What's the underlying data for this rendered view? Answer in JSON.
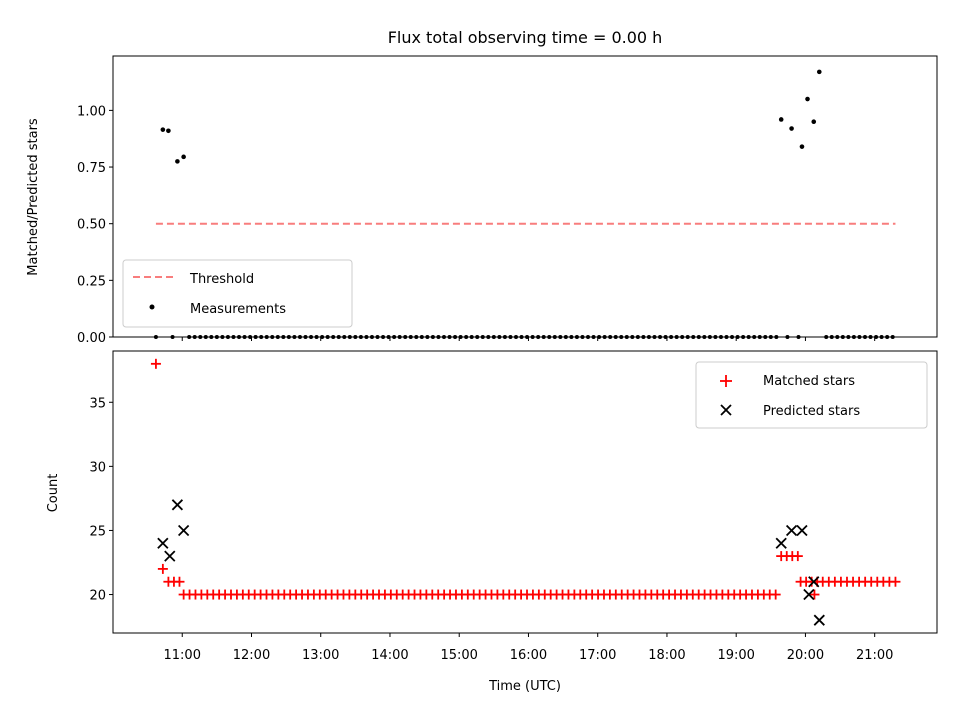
{
  "chart_data": [
    {
      "type": "scatter",
      "title": "Flux total observing time = 0.00 h",
      "xlabel": "",
      "ylabel": "Matched/Predicted stars",
      "xlim": [
        10.0,
        21.9
      ],
      "ylim": [
        0.0,
        1.24
      ],
      "yticks": [
        0.0,
        0.25,
        0.5,
        0.75,
        1.0
      ],
      "ytick_labels": [
        "0.00",
        "0.25",
        "0.50",
        "0.75",
        "1.00"
      ],
      "grid": false,
      "legend_position": "lower-left",
      "threshold": {
        "name": "Threshold",
        "value": 0.5,
        "x_start": 10.62,
        "x_end": 21.3,
        "color": "#f87d7d"
      },
      "series": [
        {
          "name": "Measurements",
          "color": "#000000",
          "points": [
            [
              10.72,
              0.915
            ],
            [
              10.8,
              0.91
            ],
            [
              10.93,
              0.775
            ],
            [
              11.02,
              0.795
            ],
            [
              19.65,
              0.96
            ],
            [
              19.8,
              0.92
            ],
            [
              19.95,
              0.84
            ],
            [
              20.03,
              1.05
            ],
            [
              20.12,
              0.95
            ],
            [
              20.2,
              1.17
            ]
          ],
          "zero_range": {
            "value": 0.0,
            "x_start": 10.62,
            "x_end": 21.3,
            "step": 0.08
          }
        }
      ]
    },
    {
      "type": "scatter",
      "title": "",
      "xlabel": "Time (UTC)",
      "ylabel": "Count",
      "xlim": [
        10.0,
        21.9
      ],
      "ylim": [
        17.0,
        39.0
      ],
      "yticks": [
        20,
        25,
        30,
        35
      ],
      "ytick_labels": [
        "20",
        "25",
        "30",
        "35"
      ],
      "xticks": [
        11,
        12,
        13,
        14,
        15,
        16,
        17,
        18,
        19,
        20,
        21
      ],
      "xtick_labels": [
        "11:00",
        "12:00",
        "13:00",
        "14:00",
        "15:00",
        "16:00",
        "17:00",
        "18:00",
        "19:00",
        "20:00",
        "21:00"
      ],
      "grid": false,
      "legend_position": "top-right",
      "series": [
        {
          "name": "Matched stars",
          "marker": "+",
          "color": "#ff0000",
          "points": [
            [
              10.62,
              38
            ],
            [
              10.72,
              22
            ],
            [
              10.8,
              21
            ],
            [
              10.88,
              21
            ],
            [
              10.96,
              21
            ],
            [
              19.65,
              23
            ],
            [
              19.73,
              23
            ],
            [
              19.81,
              23
            ],
            [
              19.89,
              23
            ],
            [
              19.93,
              21
            ],
            [
              20.01,
              21
            ],
            [
              20.09,
              21
            ],
            [
              20.17,
              21
            ],
            [
              20.13,
              20
            ]
          ],
          "runs": [
            {
              "value": 20,
              "x_start": 11.02,
              "x_end": 19.57,
              "step": 0.0855
            },
            {
              "value": 21,
              "x_start": 20.25,
              "x_end": 21.3,
              "step": 0.0875
            }
          ]
        },
        {
          "name": "Predicted stars",
          "marker": "x",
          "color": "#000000",
          "points": [
            [
              10.72,
              24
            ],
            [
              10.82,
              23
            ],
            [
              10.93,
              27
            ],
            [
              11.02,
              25
            ],
            [
              19.65,
              24
            ],
            [
              19.8,
              25
            ],
            [
              19.95,
              25
            ],
            [
              20.05,
              20
            ],
            [
              20.12,
              21
            ],
            [
              20.2,
              18
            ]
          ]
        }
      ]
    }
  ]
}
